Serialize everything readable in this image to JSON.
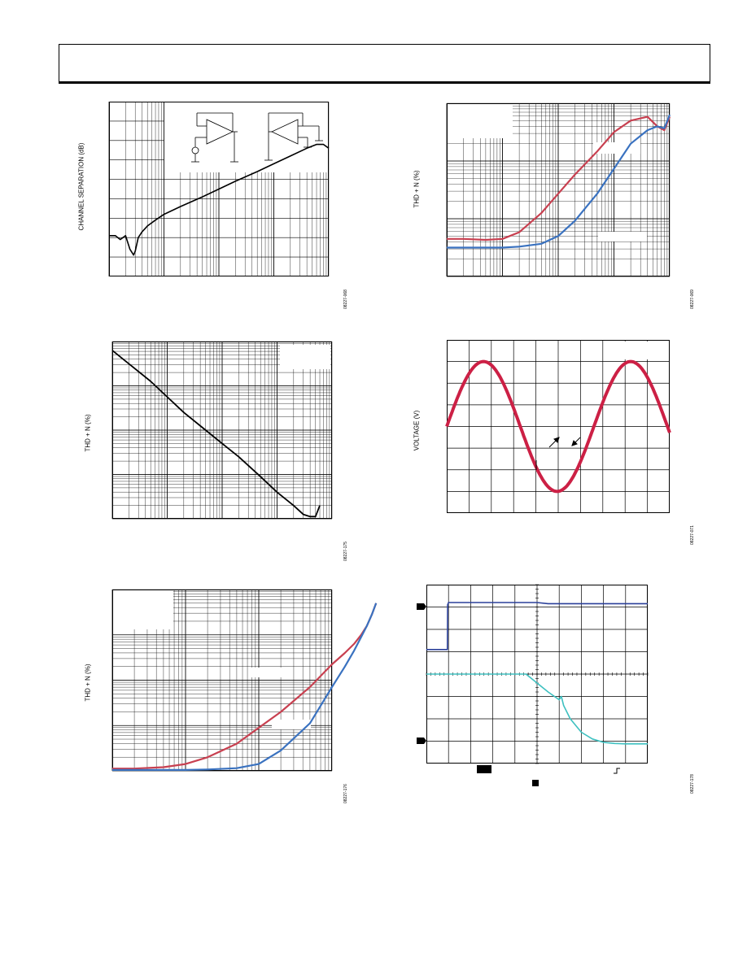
{
  "chart_data": [
    {
      "id": "channel-separation",
      "type": "line",
      "ylabel": "CHANNEL SEPARATION (dB)",
      "figure_code": "08227-068",
      "x_scale": "log",
      "grid_decades": 4,
      "grid_ydivs": 9,
      "series": [
        {
          "color": "#000000",
          "x": [
            1,
            1.3,
            1.6,
            2.0,
            2.4,
            2.8,
            3.0,
            3.4,
            4,
            5,
            7,
            10,
            20,
            50,
            100,
            200,
            500,
            1000,
            2000,
            4000,
            6000,
            8000,
            10000
          ],
          "y": [
            2.1,
            2.1,
            1.9,
            2.1,
            1.4,
            1.1,
            1.3,
            2.0,
            2.3,
            2.6,
            2.9,
            3.2,
            3.6,
            4.1,
            4.5,
            4.9,
            5.4,
            5.8,
            6.2,
            6.6,
            6.8,
            6.8,
            6.6
          ]
        }
      ]
    },
    {
      "id": "thd-vs-freq-top-right",
      "type": "line",
      "ylabel": "THD + N (%)",
      "figure_code": "08227-069",
      "x_scale": "log",
      "grid_decades": 4,
      "grid_ydivs": 6,
      "series": [
        {
          "color": "#c84050",
          "x": [
            1,
            2,
            5,
            10,
            20,
            50,
            100,
            200,
            500,
            1000,
            2000,
            4000,
            6000,
            8000,
            10000
          ],
          "y": [
            1.95,
            1.95,
            1.9,
            1.95,
            2.3,
            3.3,
            4.3,
            5.3,
            6.5,
            7.5,
            8.1,
            8.3,
            7.8,
            7.6,
            8.3
          ]
        },
        {
          "color": "#3a72c0",
          "x": [
            1,
            2,
            5,
            10,
            20,
            50,
            100,
            200,
            500,
            1000,
            2000,
            4000,
            6000,
            8000,
            10000
          ],
          "y": [
            1.5,
            1.5,
            1.5,
            1.5,
            1.55,
            1.7,
            2.1,
            2.9,
            4.3,
            5.6,
            6.9,
            7.6,
            7.8,
            7.7,
            8.4
          ]
        }
      ]
    },
    {
      "id": "thd-vs-output-mid-left",
      "type": "line",
      "ylabel": "THD + N (%)",
      "figure_code": "08227-175",
      "x_scale": "log",
      "grid_decades": 4,
      "grid_ydivs": 4,
      "series": [
        {
          "color": "#000000",
          "x": [
            1,
            2,
            5,
            10,
            20,
            50,
            100,
            200,
            500,
            1000,
            2000,
            3000,
            4000,
            5000,
            6000
          ],
          "y": [
            3.8,
            3.5,
            3.1,
            2.75,
            2.4,
            2.0,
            1.7,
            1.4,
            0.95,
            0.6,
            0.3,
            0.1,
            0.05,
            0.05,
            0.3
          ]
        }
      ]
    },
    {
      "id": "voltage-sine",
      "type": "line",
      "ylabel": "VOLTAGE (V)",
      "figure_code": "08227-071",
      "x_scale": "linear",
      "xlim": [
        0,
        10
      ],
      "ylim": [
        -4,
        4
      ],
      "grid_xdivs": 10,
      "grid_ydivs": 8,
      "series": [
        {
          "color": "#cc2045",
          "amplitude": 3.0,
          "period": 6.6,
          "phase": 0.0
        }
      ]
    },
    {
      "id": "thd-vs-output-bottom-left",
      "type": "line",
      "ylabel": "THD + N (%)",
      "figure_code": "08227-176",
      "x_scale": "log",
      "grid_decades": 3,
      "grid_ydivs": 4,
      "series": [
        {
          "color": "#c84050",
          "x": [
            1,
            2,
            5,
            10,
            20,
            50,
            100,
            200,
            500,
            1000,
            1500,
            2000,
            2500,
            3000,
            3500,
            4000
          ],
          "y": [
            0.05,
            0.05,
            0.08,
            0.15,
            0.3,
            0.6,
            0.95,
            1.3,
            1.85,
            2.35,
            2.6,
            2.8,
            3.0,
            3.2,
            3.45,
            3.7
          ]
        },
        {
          "color": "#3a72c0",
          "x": [
            1,
            2,
            5,
            10,
            20,
            50,
            100,
            200,
            500,
            1000,
            1500,
            2000,
            2500,
            3000,
            3500,
            4000
          ],
          "y": [
            0.02,
            0.02,
            0.02,
            0.02,
            0.03,
            0.06,
            0.15,
            0.45,
            1.05,
            1.85,
            2.3,
            2.65,
            2.95,
            3.2,
            3.45,
            3.7
          ]
        }
      ]
    },
    {
      "id": "scope-capture",
      "type": "line",
      "figure_code": "08227-178",
      "x_scale": "linear",
      "xlim": [
        0,
        10
      ],
      "ylim": [
        0,
        8
      ],
      "grid_xdivs": 10,
      "grid_ydivs": 8,
      "series": [
        {
          "color": "#2a3f9a",
          "x": [
            0,
            0.95,
            0.96,
            1.0,
            5.0,
            5.5,
            10
          ],
          "y": [
            5.1,
            5.1,
            7.1,
            7.2,
            7.2,
            7.15,
            7.15
          ]
        },
        {
          "color": "#3ec0c0",
          "x": [
            0,
            4.5,
            5.0,
            5.5,
            6.0,
            6.1,
            6.2,
            6.5,
            7.0,
            7.5,
            8.0,
            8.5,
            9.0,
            10
          ],
          "y": [
            4.0,
            4.0,
            3.6,
            3.2,
            2.85,
            3.0,
            2.6,
            2.0,
            1.4,
            1.1,
            0.95,
            0.9,
            0.88,
            0.88
          ]
        }
      ]
    }
  ]
}
